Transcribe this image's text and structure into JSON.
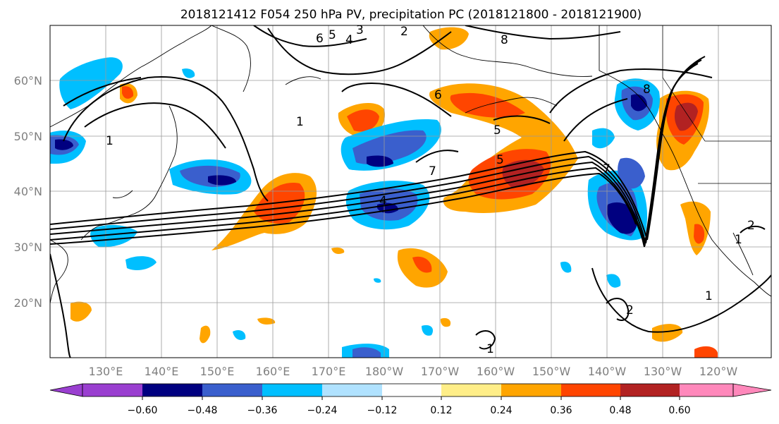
{
  "title": "2018121412 F054 250 hPa PV, precipitation PC (2018121800 - 2018121900)",
  "map": {
    "lat_labels": [
      "60°N",
      "50°N",
      "40°N",
      "30°N",
      "20°N"
    ],
    "lon_labels": [
      "130°E",
      "140°E",
      "150°E",
      "160°E",
      "170°E",
      "180°W",
      "170°W",
      "160°W",
      "150°W",
      "140°W",
      "130°W",
      "120°W"
    ],
    "contour_labels": [
      "6",
      "5",
      "4",
      "3",
      "2",
      "1",
      "7",
      "8",
      "6",
      "5",
      "7",
      "1",
      "8",
      "4",
      "5",
      "2",
      "1",
      "1",
      "1",
      "2"
    ]
  },
  "colorbar": {
    "ticks": [
      "−0.60",
      "−0.48",
      "−0.36",
      "−0.24",
      "−0.12",
      "0.12",
      "0.24",
      "0.36",
      "0.48",
      "0.60"
    ],
    "colors": [
      "#9a3fd0",
      "#000080",
      "#3a5fcd",
      "#00bfff",
      "#b0e2ff",
      "#ffffff",
      "#ffee88",
      "#ffa500",
      "#ff4500",
      "#b22222",
      "#ff88bb"
    ]
  }
}
